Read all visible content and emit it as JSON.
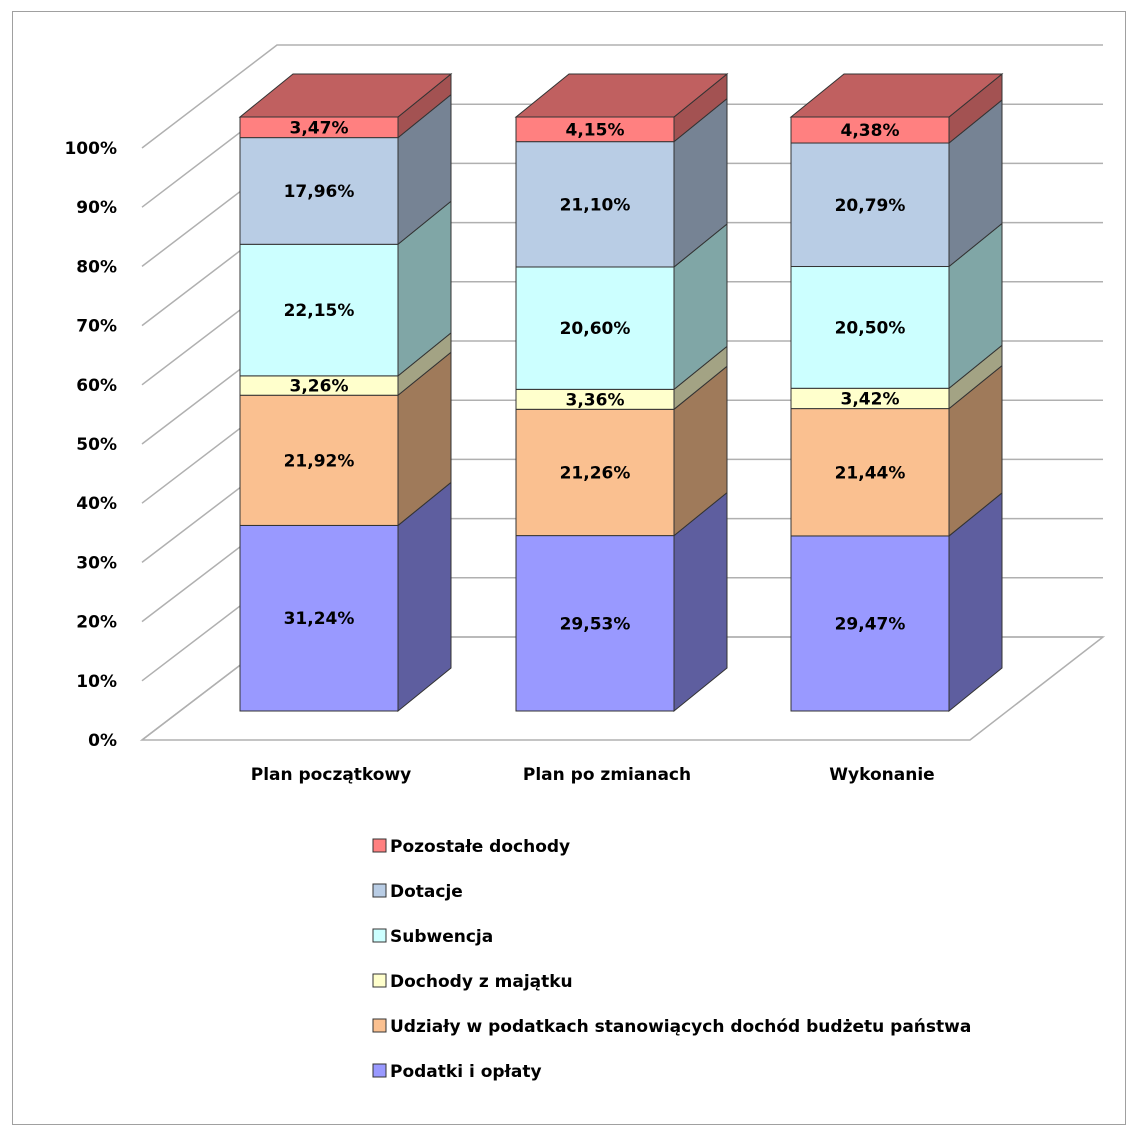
{
  "chart_data": {
    "type": "bar",
    "stacked": true,
    "percent_stacked": true,
    "three_d": true,
    "title": "",
    "xlabel": "",
    "ylabel": "",
    "ylim": [
      0,
      100
    ],
    "yticks": [
      "0%",
      "10%",
      "20%",
      "30%",
      "40%",
      "50%",
      "60%",
      "70%",
      "80%",
      "90%",
      "100%"
    ],
    "grid": true,
    "legend_position": "bottom",
    "categories": [
      "Plan początkowy",
      "Plan po zmianach",
      "Wykonanie"
    ],
    "series": [
      {
        "name": "Podatki i opłaty",
        "color": "#9999ff",
        "side_color": "#5e5e9f",
        "top_color": "#7e7ed4",
        "values": [
          31.24,
          29.53,
          29.47
        ],
        "labels": [
          "31,24%",
          "29,53%",
          "29,47%"
        ]
      },
      {
        "name": "Udziały w podatkach stanowiących dochód budżetu państwa",
        "color": "#fac090",
        "side_color": "#9f7a5a",
        "top_color": "#d9a679",
        "values": [
          21.92,
          21.26,
          21.44
        ],
        "labels": [
          "21,92%",
          "21,26%",
          "21,44%"
        ]
      },
      {
        "name": "Dochody z majątku",
        "color": "#ffffcc",
        "side_color": "#a3a384",
        "top_color": "#dcdcb0",
        "values": [
          3.26,
          3.36,
          3.42
        ],
        "labels": [
          "3,26%",
          "3,36%",
          "3,42%"
        ]
      },
      {
        "name": "Subwencja",
        "color": "#ccffff",
        "side_color": "#80a6a6",
        "top_color": "#ace0e0",
        "values": [
          22.15,
          20.6,
          20.5
        ],
        "labels": [
          "22,15%",
          "20,60%",
          "20,50%"
        ]
      },
      {
        "name": "Dotacje",
        "color": "#b9cde5",
        "side_color": "#768394",
        "top_color": "#9fb1c7",
        "values": [
          17.96,
          21.1,
          20.79
        ],
        "labels": [
          "17,96%",
          "21,10%",
          "20,79%"
        ]
      },
      {
        "name": "Pozostałe dochody",
        "color": "#ff8080",
        "side_color": "#a35252",
        "top_color": "#c06060",
        "values": [
          3.47,
          4.15,
          4.38
        ],
        "labels": [
          "3,47%",
          "4,15%",
          "4,38%"
        ]
      }
    ]
  }
}
